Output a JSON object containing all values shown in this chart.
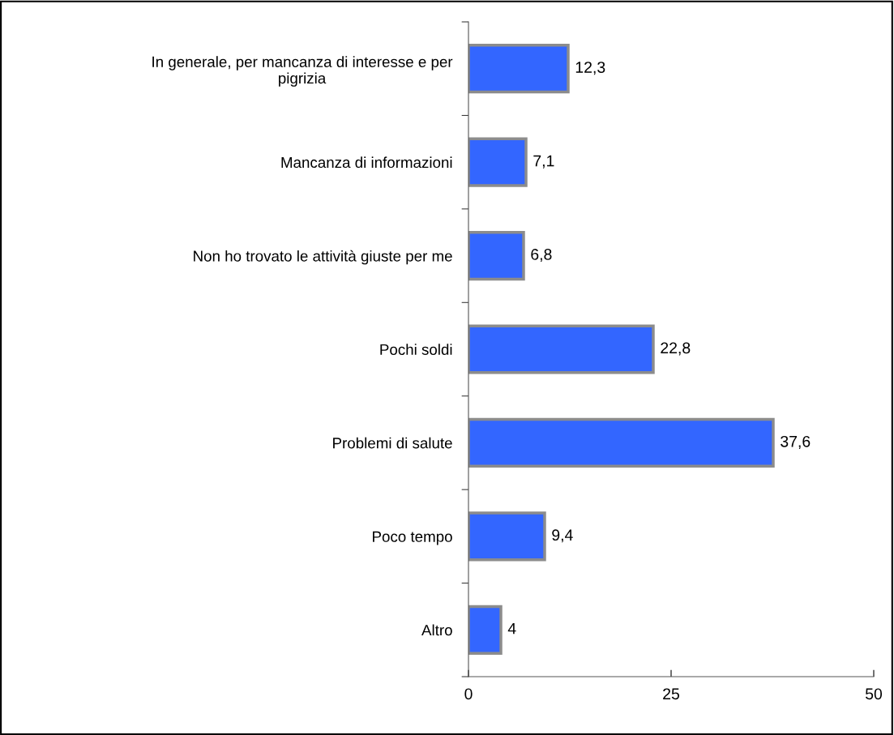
{
  "chart_data": {
    "type": "bar",
    "orientation": "horizontal",
    "categories": [
      "In generale, per mancanza di interesse e per\npigrizia",
      "Mancanza di informazioni",
      "Non ho trovato le attività giuste per me",
      "Pochi soldi",
      "Problemi di salute",
      "Poco tempo",
      "Altro"
    ],
    "values": [
      12.3,
      7.1,
      6.8,
      22.8,
      37.6,
      9.4,
      4
    ],
    "value_labels": [
      "12,3",
      "7,1",
      "6,8",
      "22,8",
      "37,6",
      "9,4",
      "4"
    ],
    "color": "#3366ff",
    "xlim": [
      0,
      50
    ],
    "xticks": [
      0,
      25,
      50
    ],
    "grid": false,
    "legend": false
  }
}
